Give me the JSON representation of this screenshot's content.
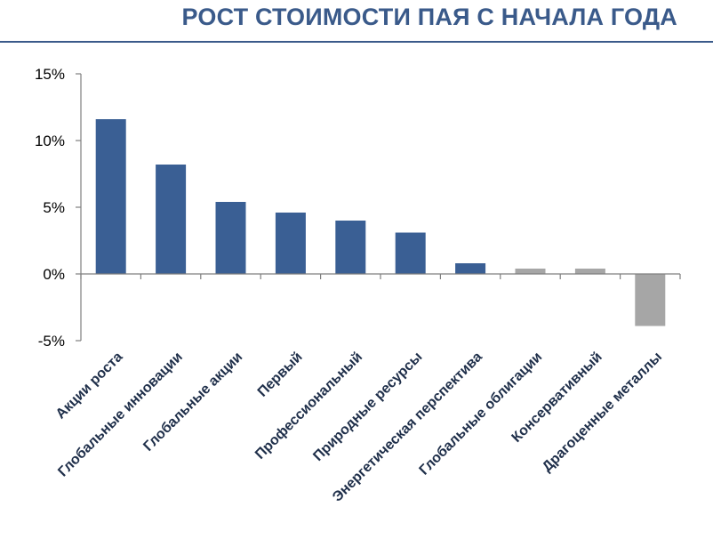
{
  "chart_data": {
    "type": "bar",
    "title": "РОСТ СТОИМОСТИ ПАЯ С НАЧАЛА ГОДА",
    "xlabel": "",
    "ylabel": "",
    "ylim": [
      -5,
      15
    ],
    "yticks": [
      {
        "value": 15,
        "label": "15%"
      },
      {
        "value": 10,
        "label": "10%"
      },
      {
        "value": 5,
        "label": "5%"
      },
      {
        "value": 0,
        "label": "0%"
      },
      {
        "value": -5,
        "label": "-5%"
      }
    ],
    "grid": false,
    "categories": [
      "Акции роста",
      "Глобальные инновации",
      "Глобальные акции",
      "Первый",
      "Профессиональный",
      "Природные ресурсы",
      "Энергетическая перспектива",
      "Глобальные облигации",
      "Консервативный",
      "Драгоценные  металлы"
    ],
    "values": [
      11.6,
      8.2,
      5.4,
      4.6,
      4.0,
      3.1,
      0.8,
      0.4,
      0.4,
      -3.9
    ],
    "colors": [
      "#3a5f94",
      "#3a5f94",
      "#3a5f94",
      "#3a5f94",
      "#3a5f94",
      "#3a5f94",
      "#3a5f94",
      "#a6a6a6",
      "#a6a6a6",
      "#a6a6a6"
    ]
  }
}
